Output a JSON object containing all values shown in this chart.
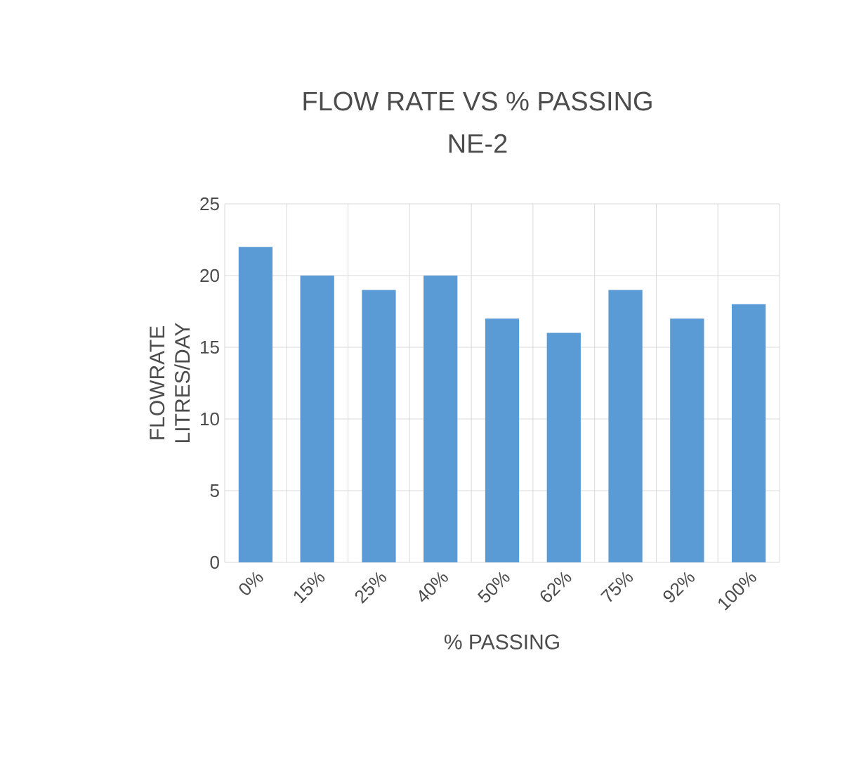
{
  "chart_data": {
    "type": "bar",
    "title": "FLOW RATE VS % PASSING",
    "subtitle": "NE-2",
    "xlabel": "% PASSING",
    "ylabel": "FLOWRATE LITRES/DAY",
    "categories": [
      "0%",
      "15%",
      "25%",
      "40%",
      "50%",
      "62%",
      "75%",
      "92%",
      "100%"
    ],
    "values": [
      22,
      20,
      19,
      20,
      17,
      16,
      19,
      17,
      18
    ],
    "color": "#5b9bd5",
    "ylim": [
      0,
      25
    ],
    "yticks": [
      0,
      5,
      10,
      15,
      20,
      25
    ],
    "grid": true
  }
}
